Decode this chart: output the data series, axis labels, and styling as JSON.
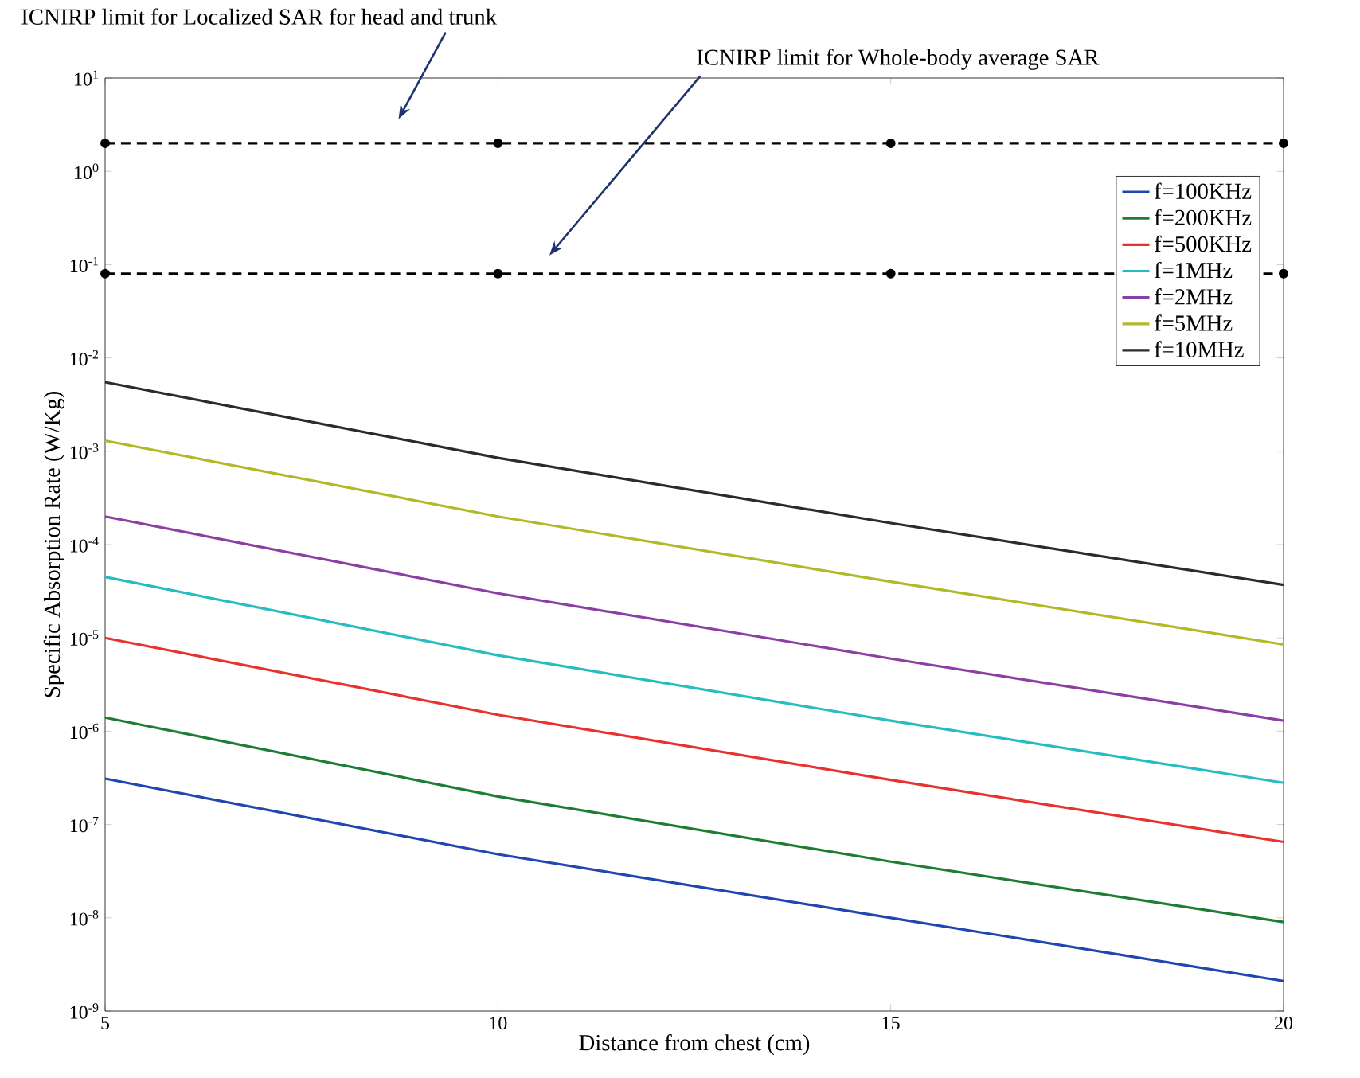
{
  "chart_data": {
    "type": "line",
    "xlabel": "Distance from chest (cm)",
    "ylabel": "Specific Absorption Rate (W/Kg)",
    "x": [
      5,
      10,
      15,
      20
    ],
    "series": [
      {
        "name": "f=100KHz",
        "color": "#2146b0",
        "values": [
          3.1e-07,
          4.8e-08,
          1e-08,
          2.1e-09
        ]
      },
      {
        "name": "f=200KHz",
        "color": "#1e7d34",
        "values": [
          1.4e-06,
          2e-07,
          4e-08,
          9e-09
        ]
      },
      {
        "name": "f=500KHz",
        "color": "#e8322d",
        "values": [
          1e-05,
          1.5e-06,
          3e-07,
          6.5e-08
        ]
      },
      {
        "name": "f=1MHz",
        "color": "#27bcc0",
        "values": [
          4.5e-05,
          6.5e-06,
          1.3e-06,
          2.8e-07
        ]
      },
      {
        "name": "f=2MHz",
        "color": "#8c3fa3",
        "values": [
          0.0002,
          3e-05,
          6e-06,
          1.3e-06
        ]
      },
      {
        "name": "f=5MHz",
        "color": "#b1b928",
        "values": [
          0.0013,
          0.0002,
          4e-05,
          8.5e-06
        ]
      },
      {
        "name": "f=10MHz",
        "color": "#2b2b2b",
        "values": [
          0.0055,
          0.00085,
          0.00017,
          3.7e-05
        ]
      },
      {
        "color": "#000000",
        "values": [
          2,
          2,
          2,
          2
        ],
        "line_style": "dashed",
        "marker": "circle"
      },
      {
        "color": "#000000",
        "values": [
          0.08,
          0.08,
          0.08,
          0.08
        ],
        "line_style": "dashed",
        "marker": "circle"
      }
    ],
    "log": "y",
    "xlim": [
      5,
      20
    ],
    "ylim": [
      1e-09,
      10
    ],
    "xticks": [
      5,
      10,
      15,
      20
    ],
    "yticks": [
      {
        "value": 1e-09,
        "label": "10$^{-9}$"
      },
      {
        "value": 1e-08,
        "label": "10$^{-8}$"
      },
      {
        "value": 1e-07,
        "label": "10$^{-7}$"
      },
      {
        "value": 1e-06,
        "label": "10$^{-6}$"
      },
      {
        "value": 1e-05,
        "label": "10$^{-5}$"
      },
      {
        "value": 0.0001,
        "label": "10$^{-4}$"
      },
      {
        "value": 0.001,
        "label": "10$^{-3}$"
      },
      {
        "value": 0.01,
        "label": "10$^{-2}$"
      },
      {
        "value": 0.1,
        "label": "10$^{-1}$"
      },
      {
        "value": 1,
        "label": "10$^{0}$"
      },
      {
        "value": 10,
        "label": "10$^{1}$"
      }
    ],
    "legend": "top right",
    "grid": false,
    "marker": "none",
    "line_style": "solid",
    "annotations": [
      "ICNIRP limit for Localized SAR for head and trunk",
      "ICNIRP limit for Whole-body average SAR"
    ]
  }
}
